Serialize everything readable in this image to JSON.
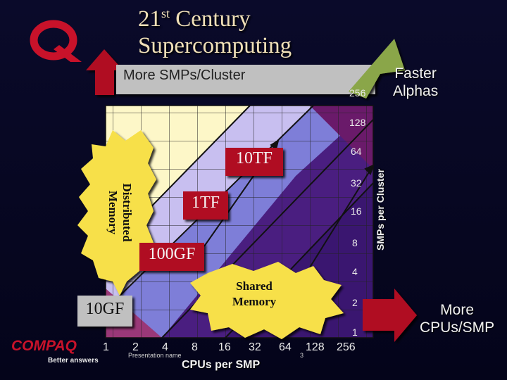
{
  "slide": {
    "title_line1_pre": "21",
    "title_line1_sup": "st",
    "title_line1_post": " Century",
    "title_line2": "Supercomputing",
    "more_smps_label": "More SMPs/Cluster",
    "faster_alphas_line1": "Faster",
    "faster_alphas_line2": "Alphas",
    "more_cpus_line1": "More",
    "more_cpus_line2": "CPUs/SMP",
    "y_axis_title": "SMPs per Cluster",
    "x_axis_title": "CPUs per SMP",
    "y_ticks": [
      "256",
      "128",
      "64",
      "32",
      "16",
      "8",
      "4",
      "2",
      "1"
    ],
    "x_ticks": [
      "1",
      "2",
      "4",
      "8",
      "16",
      "32",
      "64",
      "128",
      "256"
    ],
    "distributed_memory_line1": "Distributed",
    "distributed_memory_line2": "Memory",
    "shared_memory_line1": "Shared",
    "shared_memory_line2": "Memory",
    "perf_10tf": "10TF",
    "perf_1tf": "1TF",
    "perf_100gf": "100GF",
    "perf_10gf": "10GF",
    "footer_presentation": "Presentation name",
    "footer_page": "3",
    "brand_logo_text": "COMPAQ",
    "brand_tagline": "Better answers"
  },
  "colors": {
    "band_light": "#fdf7c8",
    "band_lavender": "#c8bff0",
    "band_purple": "#7e7ed8",
    "band_dark": "#4a1e80",
    "band_darkest": "#6a1a6a",
    "shared_shade": "#9a3878",
    "arrow_red": "#b01024",
    "arrow_green": "#8aa64a",
    "starburst": "#f7e04a"
  },
  "icons": [
    "compaq-q-logo-icon",
    "compaq-wordmark-icon"
  ]
}
